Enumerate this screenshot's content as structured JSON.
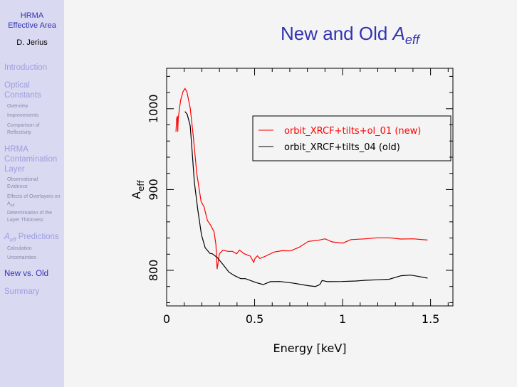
{
  "sidebar": {
    "title_line1": "HRMA",
    "title_line2": "Effective Area",
    "author": "D. Jerius",
    "items": [
      {
        "label": "Introduction"
      },
      {
        "label": "Optical Constants",
        "subs": [
          "Overview",
          "Improvements",
          "Comparison of Reflectivity"
        ]
      },
      {
        "label": "HRMA Contamination Layer",
        "subs": [
          "Observational Evidence",
          "Effects of Overlayers on A",
          "Determination of the Layer Thickness"
        ]
      },
      {
        "label": "Predictions",
        "prefix": "A",
        "prefix_sub": "eff",
        "subs": [
          "Calculation",
          "Uncertainties"
        ]
      },
      {
        "label": "New vs. Old"
      },
      {
        "label": "Summary"
      }
    ],
    "sub_eff": "eff"
  },
  "slide": {
    "title": "New and Old ",
    "title_a": "A",
    "title_sub": "eff"
  },
  "chart_data": {
    "type": "line",
    "title": "",
    "xlabel": "Energy [keV]",
    "ylabel": "A",
    "ylabel_sub": "eff",
    "xlim": [
      0,
      1.627
    ],
    "ylim": [
      756,
      1050
    ],
    "xticks": [
      0,
      0.5,
      1,
      1.5
    ],
    "xtick_labels": [
      "0",
      "0.5",
      "1",
      "1.5"
    ],
    "yticks": [
      800,
      900,
      1000
    ],
    "ytick_labels": [
      "800",
      "900",
      "1000"
    ],
    "legend_position": "upper-right",
    "grid": false,
    "series": [
      {
        "name": "orbit_XRCF+tilts+ol_01 (new)",
        "color": "#ff0000",
        "x": [
          0.053,
          0.057,
          0.061,
          0.063,
          0.066,
          0.072,
          0.08,
          0.093,
          0.104,
          0.115,
          0.134,
          0.151,
          0.171,
          0.196,
          0.212,
          0.232,
          0.25,
          0.269,
          0.28,
          0.287,
          0.3,
          0.32,
          0.347,
          0.374,
          0.398,
          0.414,
          0.441,
          0.475,
          0.495,
          0.502,
          0.516,
          0.529,
          0.563,
          0.61,
          0.657,
          0.704,
          0.752,
          0.806,
          0.86,
          0.9,
          0.941,
          1.001,
          1.048,
          1.13,
          1.197,
          1.265,
          1.332,
          1.4,
          1.483
        ],
        "y": [
          971.6,
          987.7,
          991,
          971.6,
          987.7,
          999,
          1011,
          1021,
          1025,
          1021,
          1001,
          967,
          920,
          885,
          879,
          861.6,
          855.7,
          848,
          832,
          801.5,
          820.5,
          825,
          823.5,
          823.5,
          820.5,
          825,
          820.5,
          817.6,
          810,
          814.7,
          818,
          814.7,
          817.6,
          822.6,
          824.3,
          824,
          828.4,
          835.8,
          837.2,
          839,
          835.2,
          833.7,
          838,
          839,
          840.2,
          840.2,
          838.7,
          839,
          837.5
        ]
      },
      {
        "name": "orbit_XRCF+tilts_04 (old)",
        "color": "#000000",
        "x": [
          0.104,
          0.117,
          0.134,
          0.144,
          0.158,
          0.178,
          0.198,
          0.219,
          0.246,
          0.259,
          0.287,
          0.32,
          0.354,
          0.387,
          0.421,
          0.448,
          0.509,
          0.549,
          0.59,
          0.644,
          0.725,
          0.806,
          0.846,
          0.87,
          0.884,
          0.914,
          0.995,
          1.076,
          1.13,
          1.197,
          1.265,
          1.332,
          1.386,
          1.426,
          1.483
        ],
        "y": [
          996.5,
          993,
          979,
          949.6,
          908.5,
          873.3,
          844,
          828,
          821,
          820.5,
          816,
          807.3,
          797.7,
          793.3,
          789.7,
          789.7,
          784.8,
          782.4,
          786,
          786.2,
          784,
          781,
          780,
          782.4,
          787.4,
          786,
          786.2,
          786.8,
          787.7,
          788.3,
          789,
          793.3,
          794.1,
          792.7,
          790.3
        ]
      }
    ]
  }
}
